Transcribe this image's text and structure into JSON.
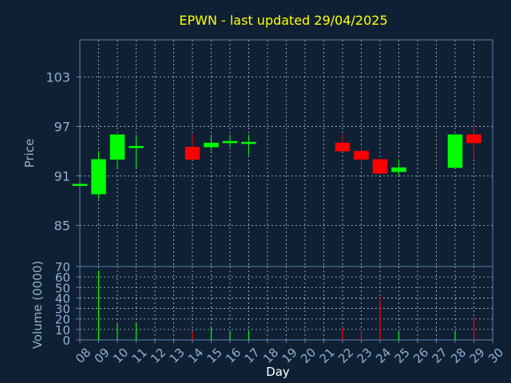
{
  "chart_data": [
    {
      "type": "candlestick",
      "title": "EPWN - last updated 29/04/2025",
      "xlabel": "Day",
      "ylabel": "Price",
      "ylim": [
        80,
        107.5
      ],
      "yticks": [
        85,
        91,
        97,
        103
      ],
      "x_categories": [
        "08",
        "09",
        "10",
        "11",
        "12",
        "13",
        "14",
        "15",
        "16",
        "17",
        "18",
        "19",
        "20",
        "21",
        "22",
        "23",
        "24",
        "25",
        "26",
        "27",
        "28",
        "29",
        "30"
      ],
      "grid": true,
      "candles": [
        {
          "day": "08",
          "open": 90,
          "high": 90,
          "low": 90,
          "close": 90
        },
        {
          "day": "09",
          "open": 88.8,
          "high": 94,
          "low": 88.2,
          "close": 93
        },
        {
          "day": "10",
          "open": 93,
          "high": 96,
          "low": 92,
          "close": 96
        },
        {
          "day": "11",
          "open": 94.5,
          "high": 96,
          "low": 92,
          "close": 94.6
        },
        {
          "day": "14",
          "open": 94.5,
          "high": 96,
          "low": 93,
          "close": 93
        },
        {
          "day": "15",
          "open": 94.5,
          "high": 96,
          "low": 94,
          "close": 95
        },
        {
          "day": "16",
          "open": 95,
          "high": 96,
          "low": 94.5,
          "close": 95.2
        },
        {
          "day": "17",
          "open": 95,
          "high": 96,
          "low": 93.5,
          "close": 95.1
        },
        {
          "day": "22",
          "open": 95,
          "high": 96,
          "low": 94,
          "close": 94
        },
        {
          "day": "23",
          "open": 94,
          "high": 94.5,
          "low": 92,
          "close": 93
        },
        {
          "day": "24",
          "open": 93,
          "high": 93,
          "low": 91.2,
          "close": 91.3
        },
        {
          "day": "25",
          "open": 91.5,
          "high": 93,
          "low": 91,
          "close": 92
        },
        {
          "day": "28",
          "open": 92,
          "high": 96,
          "low": 92,
          "close": 96
        },
        {
          "day": "29",
          "open": 96,
          "high": 97.3,
          "low": 93,
          "close": 95
        }
      ],
      "up_color": "#00ff00",
      "down_color": "#ff0000"
    },
    {
      "type": "bar",
      "ylabel": "Volume (0000)",
      "ylim": [
        0,
        70
      ],
      "yticks": [
        0,
        10,
        20,
        30,
        40,
        50,
        60,
        70
      ],
      "x_categories": [
        "08",
        "09",
        "10",
        "11",
        "12",
        "13",
        "14",
        "15",
        "16",
        "17",
        "18",
        "19",
        "20",
        "21",
        "22",
        "23",
        "24",
        "25",
        "26",
        "27",
        "28",
        "29",
        "30"
      ],
      "bars": [
        {
          "day": "09",
          "value": 66,
          "direction": "up"
        },
        {
          "day": "10",
          "value": 15,
          "direction": "up"
        },
        {
          "day": "11",
          "value": 16,
          "direction": "up"
        },
        {
          "day": "14",
          "value": 8,
          "direction": "down"
        },
        {
          "day": "15",
          "value": 12,
          "direction": "up"
        },
        {
          "day": "16",
          "value": 9,
          "direction": "up"
        },
        {
          "day": "17",
          "value": 9,
          "direction": "up"
        },
        {
          "day": "22",
          "value": 12,
          "direction": "down"
        },
        {
          "day": "23",
          "value": 9,
          "direction": "down"
        },
        {
          "day": "24",
          "value": 41,
          "direction": "down"
        },
        {
          "day": "25",
          "value": 8,
          "direction": "up"
        },
        {
          "day": "28",
          "value": 9,
          "direction": "up"
        },
        {
          "day": "29",
          "value": 22,
          "direction": "down"
        }
      ]
    }
  ],
  "colors": {
    "background": "#0f2035",
    "axis": "#5f82a8",
    "grid": "#b8c8d8",
    "title": "#ffff00",
    "label": "#8fb0d0"
  }
}
